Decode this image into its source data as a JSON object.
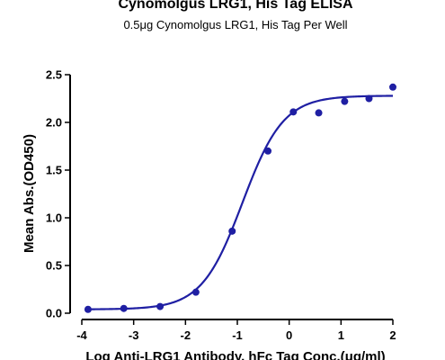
{
  "chart_data": {
    "type": "scatter",
    "title": "Cynomolgus LRG1, His Tag ELISA",
    "subtitle": "0.5μg Cynomolgus LRG1, His Tag Per Well",
    "xlabel": "Log Anti-LRG1 Antibody, hFc Tag Conc.(μg/ml)",
    "ylabel": "Mean Abs.(OD450)",
    "xlim": [
      -4,
      2
    ],
    "ylim": [
      0,
      2.5
    ],
    "xticks": [
      -4,
      -3,
      -2,
      -1,
      0,
      1,
      2
    ],
    "yticks": [
      0.0,
      0.5,
      1.0,
      1.5,
      2.0,
      2.5
    ],
    "xtick_labels": [
      "-4",
      "-3",
      "-2",
      "-1",
      "0",
      "1",
      "2"
    ],
    "ytick_labels": [
      "0.0",
      "0.5",
      "1.0",
      "1.5",
      "2.0",
      "2.5"
    ],
    "grid": false,
    "series": [
      {
        "x": [
          -3.88,
          -3.19,
          -2.49,
          -1.8,
          -1.1,
          -0.41,
          0.08,
          0.57,
          1.07,
          1.54,
          2.0
        ],
        "y": [
          0.04,
          0.05,
          0.07,
          0.22,
          0.86,
          1.7,
          2.11,
          2.1,
          2.22,
          2.25,
          2.37
        ],
        "color": "#1f1fa3"
      }
    ],
    "fit": {
      "model": "4PL",
      "bottom": 0.04,
      "top": 2.28,
      "logEC50": -0.9,
      "hill": 1.1,
      "color": "#1f1fa3"
    }
  }
}
